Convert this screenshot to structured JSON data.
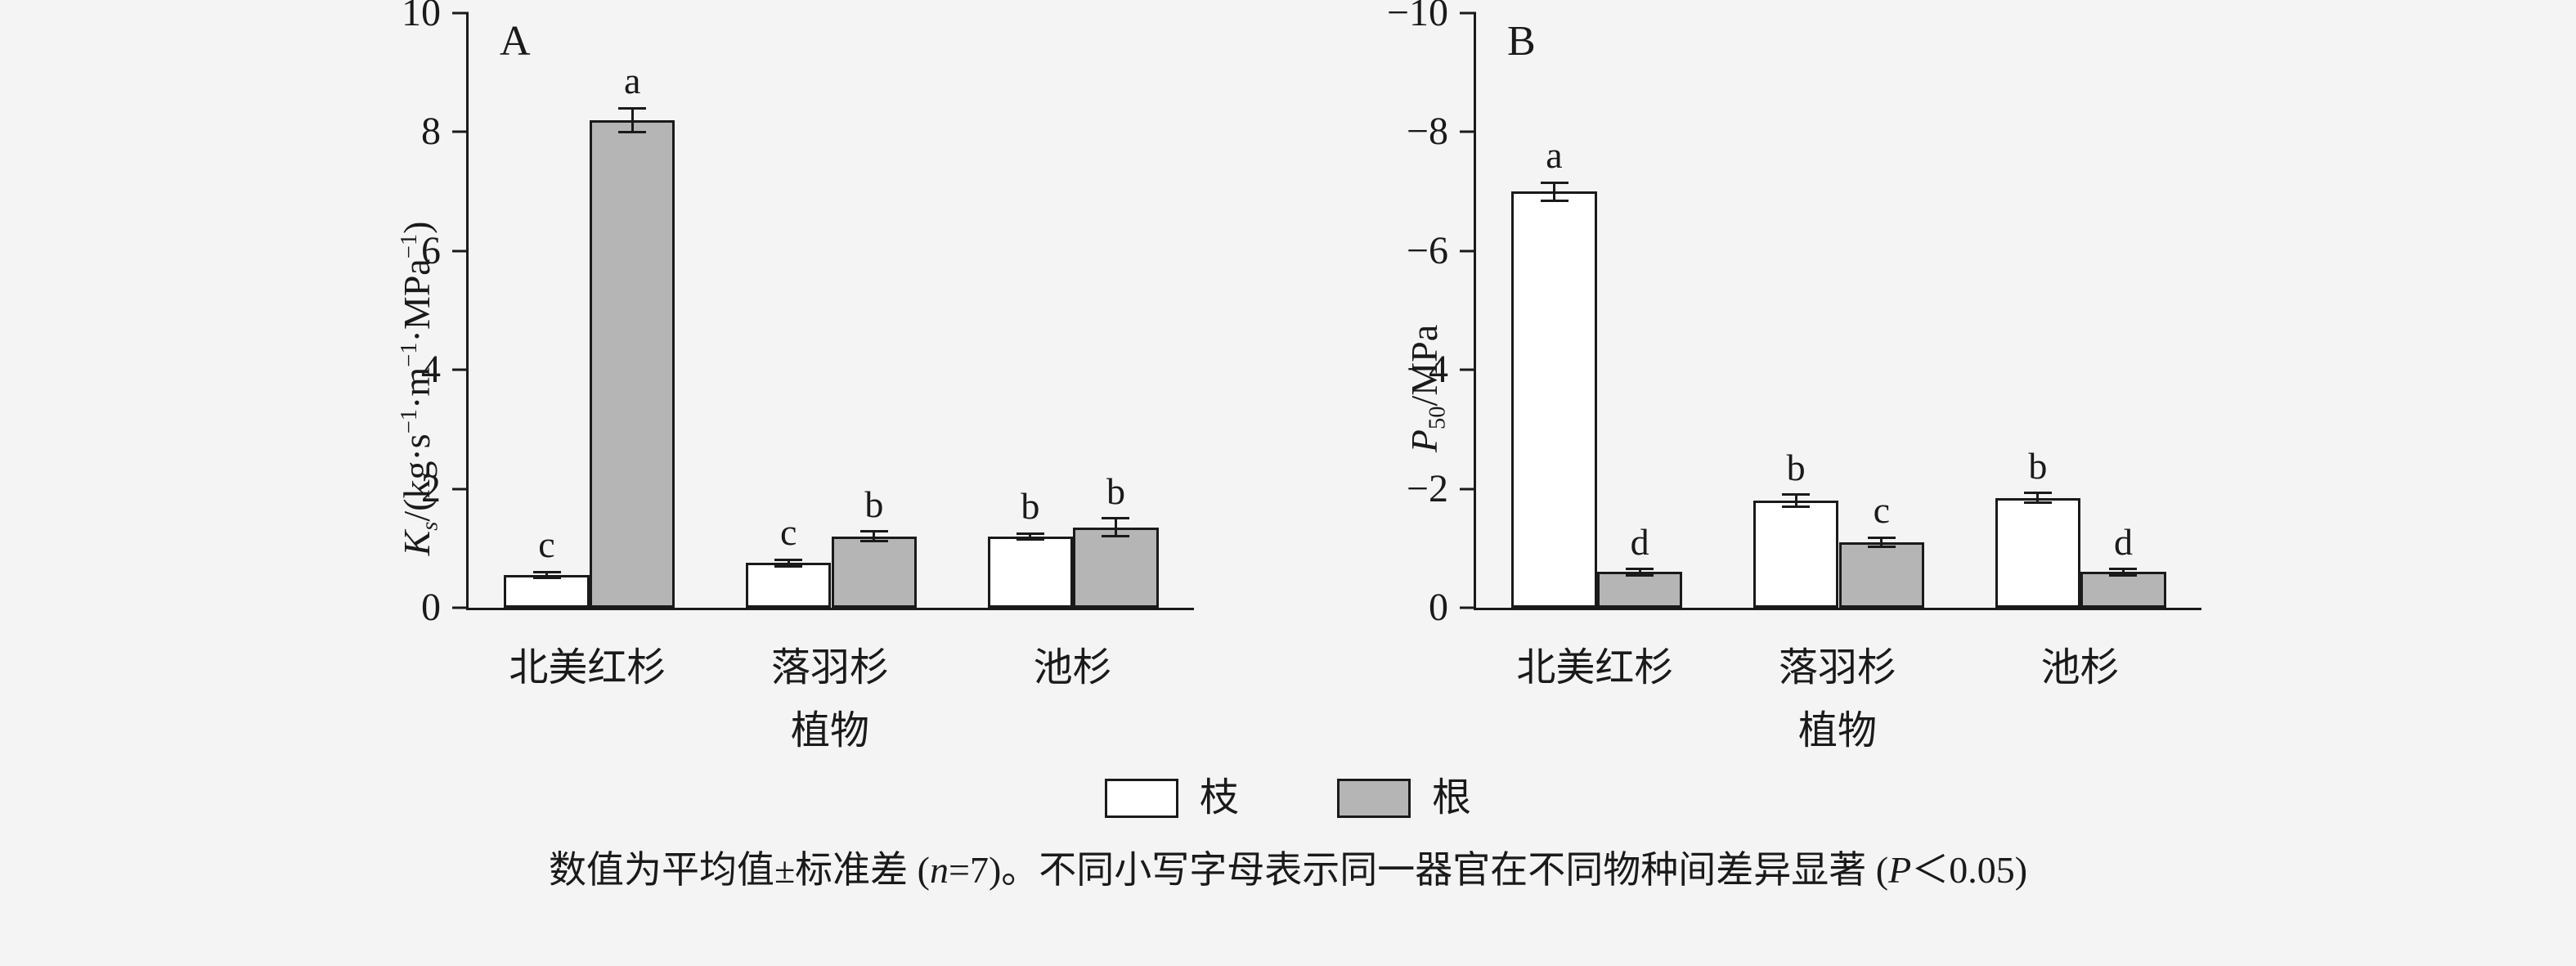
{
  "figure": {
    "background": "#f4f4f4",
    "caption": "数值为平均值±标准差 (n=7)。不同小写字母表示同一器官在不同物种间差异显著 (P＜0.05)",
    "caption_parts": [
      {
        "t": "数值为平均值±标准差 (",
        "s": ""
      },
      {
        "t": "n",
        "s": "i"
      },
      {
        "t": "=7)。不同小写字母表示同一器官在不同物种间差异显著 (",
        "s": ""
      },
      {
        "t": "P",
        "s": "i"
      },
      {
        "t": "＜0.05)",
        "s": ""
      }
    ]
  },
  "legend": {
    "stroke": "#1a1a1a",
    "items": [
      {
        "label": "枝",
        "fill": "#ffffff"
      },
      {
        "label": "根",
        "fill": "#b5b5b5"
      }
    ]
  },
  "chart_data": [
    {
      "type": "bar",
      "panel_label": "A",
      "xlabel": "植物",
      "ylabel": "Kₛ/(kg·s⁻¹·m⁻¹·MPa⁻¹)",
      "ylabel_parts": [
        {
          "t": "K",
          "s": "i"
        },
        {
          "t": "s",
          "s": "isub"
        },
        {
          "t": "/(kg·s",
          "s": ""
        },
        {
          "t": "−1",
          "s": "sup"
        },
        {
          "t": "·m",
          "s": ""
        },
        {
          "t": "−1",
          "s": "sup"
        },
        {
          "t": "·MPa",
          "s": ""
        },
        {
          "t": "−1",
          "s": "sup"
        },
        {
          "t": ")",
          "s": ""
        }
      ],
      "ylim": [
        0,
        10
      ],
      "yticks": [
        {
          "value": 0,
          "label": "0"
        },
        {
          "value": 2,
          "label": "2"
        },
        {
          "value": 4,
          "label": "4"
        },
        {
          "value": 6,
          "label": "6"
        },
        {
          "value": 8,
          "label": "8"
        },
        {
          "value": 10,
          "label": "10"
        }
      ],
      "categories": [
        "北美红杉",
        "落羽杉",
        "池杉"
      ],
      "series": [
        {
          "name": "枝",
          "fill": "#ffffff",
          "values": [
            0.55,
            0.75,
            1.2
          ],
          "errors": [
            0.05,
            0.06,
            0.05
          ],
          "sig_letters": [
            "c",
            "c",
            "b"
          ]
        },
        {
          "name": "根",
          "fill": "#b5b5b5",
          "values": [
            8.2,
            1.2,
            1.35
          ],
          "errors": [
            0.2,
            0.08,
            0.15
          ],
          "sig_letters": [
            "a",
            "b",
            "b"
          ]
        }
      ],
      "grid": false,
      "legend_position": "shared-bottom"
    },
    {
      "type": "bar",
      "panel_label": "B",
      "xlabel": "植物",
      "ylabel": "P₅₀/MPa",
      "ylabel_parts": [
        {
          "t": "P",
          "s": "i"
        },
        {
          "t": "50",
          "s": "sub"
        },
        {
          "t": "/MPa",
          "s": ""
        }
      ],
      "ylim": [
        0,
        -10
      ],
      "yticks": [
        {
          "value": 0,
          "label": "0"
        },
        {
          "value": -2,
          "label": "−2"
        },
        {
          "value": -4,
          "label": "−4"
        },
        {
          "value": -6,
          "label": "−6"
        },
        {
          "value": -8,
          "label": "−8"
        },
        {
          "value": -10,
          "label": "−10"
        }
      ],
      "categories": [
        "北美红杉",
        "落羽杉",
        "池杉"
      ],
      "series": [
        {
          "name": "枝",
          "fill": "#ffffff",
          "values": [
            -7.0,
            -1.8,
            -1.85
          ],
          "errors": [
            0.15,
            0.1,
            0.08
          ],
          "sig_letters": [
            "a",
            "b",
            "b"
          ]
        },
        {
          "name": "根",
          "fill": "#b5b5b5",
          "values": [
            -0.6,
            -1.1,
            -0.6
          ],
          "errors": [
            0.05,
            0.08,
            0.05
          ],
          "sig_letters": [
            "d",
            "c",
            "d"
          ]
        }
      ],
      "grid": false,
      "legend_position": "shared-bottom"
    }
  ]
}
